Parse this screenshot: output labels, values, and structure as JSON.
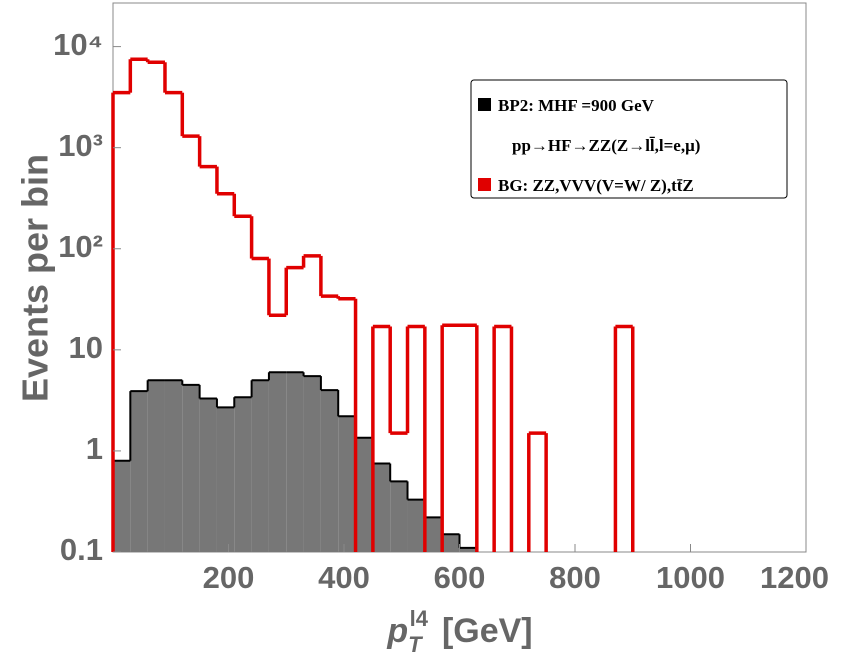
{
  "chart_data": {
    "type": "histogram",
    "bins": [
      0,
      30,
      60,
      90,
      120,
      150,
      180,
      210,
      240,
      270,
      300,
      330,
      360,
      390,
      420,
      450,
      480,
      510,
      540,
      570,
      600,
      630,
      660,
      690,
      720,
      750,
      780,
      810,
      840,
      870,
      900
    ],
    "series": [
      {
        "name": "BP2: MHF =900 GeV",
        "color": "#000000",
        "fill": "#777777",
        "values": [
          0.8,
          3.9,
          5,
          5,
          4.5,
          3.3,
          2.7,
          3.4,
          5,
          6,
          6,
          5.5,
          4,
          2.2,
          1.35,
          0.75,
          0.5,
          0.33,
          0.22,
          0.15,
          0.11,
          0,
          0,
          0,
          0,
          0,
          0,
          0,
          0,
          0
        ]
      },
      {
        "name": "BG: ZZ,VVV(V=W/ Z),tt̄Z",
        "color": "#e00000",
        "values": [
          3500,
          7500,
          7000,
          3500,
          1300,
          650,
          350,
          210,
          80,
          22,
          65,
          85,
          34,
          32,
          0,
          17,
          1.5,
          17,
          0,
          17.5,
          17.5,
          0,
          17,
          0,
          1.5,
          0,
          0,
          0,
          0,
          17
        ]
      }
    ],
    "annotation": "pp→HF→ZZ(Z→ll̄,l=e,μ)",
    "xlim": [
      0,
      1200
    ],
    "xticks": [
      200,
      400,
      600,
      800,
      1000,
      1200
    ],
    "ylim": [
      0.1,
      27000
    ],
    "log_y": true,
    "yticks": [
      0.1,
      1,
      10,
      {
        "value": 100,
        "label": "10²"
      },
      {
        "value": 1000,
        "label": "10³"
      },
      {
        "value": 10000,
        "label": "10⁴"
      }
    ],
    "y_label": "Events per bin",
    "x_label": {
      "symbol": "p",
      "sub": "T",
      "sup": "l4",
      "unit": "[GeV]"
    }
  }
}
